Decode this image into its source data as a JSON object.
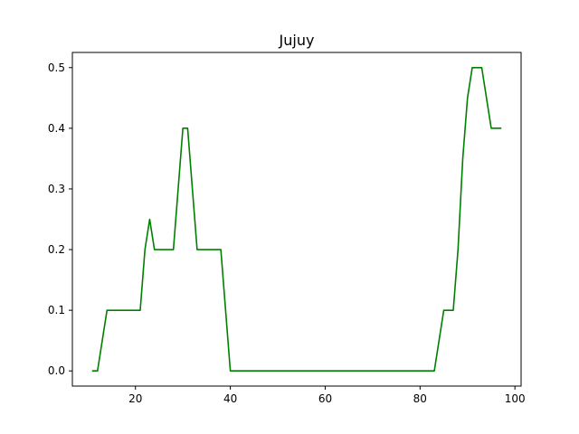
{
  "chart_data": {
    "type": "line",
    "title": "Jujuy",
    "xlabel": "",
    "ylabel": "",
    "xlim": [
      6.7,
      101.3
    ],
    "ylim": [
      -0.025,
      0.525
    ],
    "xticks": [
      20,
      40,
      60,
      80,
      100
    ],
    "yticks": [
      0.0,
      0.1,
      0.2,
      0.3,
      0.4,
      0.5
    ],
    "xtick_labels": [
      "20",
      "40",
      "60",
      "80",
      "100"
    ],
    "ytick_labels": [
      "0.0",
      "0.1",
      "0.2",
      "0.3",
      "0.4",
      "0.5"
    ],
    "grid": false,
    "legend": "none",
    "series": [
      {
        "color": "#008000",
        "x": [
          11,
          12,
          14,
          21,
          22,
          23,
          24,
          28,
          30,
          31,
          33,
          38,
          40,
          83,
          85,
          87,
          88,
          89,
          90,
          91,
          93,
          95,
          97
        ],
        "y": [
          0.0,
          0.0,
          0.1,
          0.1,
          0.2,
          0.25,
          0.2,
          0.2,
          0.4,
          0.4,
          0.2,
          0.2,
          0.0,
          0.0,
          0.1,
          0.1,
          0.2,
          0.35,
          0.45,
          0.5,
          0.5,
          0.4,
          0.4
        ]
      }
    ]
  }
}
